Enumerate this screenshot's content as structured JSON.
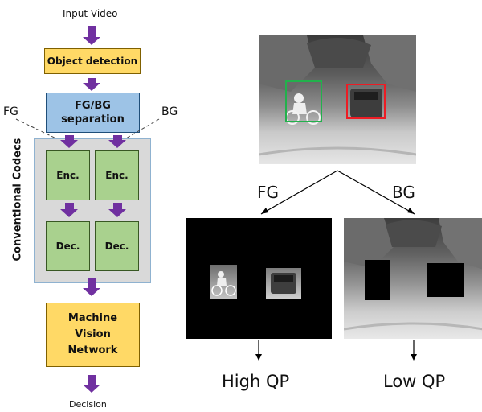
{
  "flow": {
    "input_label": "Input Video",
    "object_detection": "Object detection",
    "separation_line1": "FG/BG",
    "separation_line2": "separation",
    "fg_label": "FG",
    "bg_label": "BG",
    "codec_panel_label": "Conventional Codecs",
    "enc_left": "Enc.",
    "enc_right": "Enc.",
    "dec_left": "Dec.",
    "dec_right": "Dec.",
    "network_line1": "Machine",
    "network_line2": "Vision",
    "network_line3": "Network",
    "output_label": "Decision"
  },
  "illustration": {
    "fg_branch_label": "FG",
    "bg_branch_label": "BG",
    "fg_result_label": "High QP",
    "bg_result_label": "Low QP",
    "fg_box_color": "#22b14c",
    "bg_box_color": "#ed1c24"
  },
  "colors": {
    "arrow": "#7030a0",
    "stage_yellow": "#ffd966",
    "stage_blue": "#9dc3e6",
    "stage_green": "#a9d18e",
    "panel_gray": "#d9d9d9"
  }
}
